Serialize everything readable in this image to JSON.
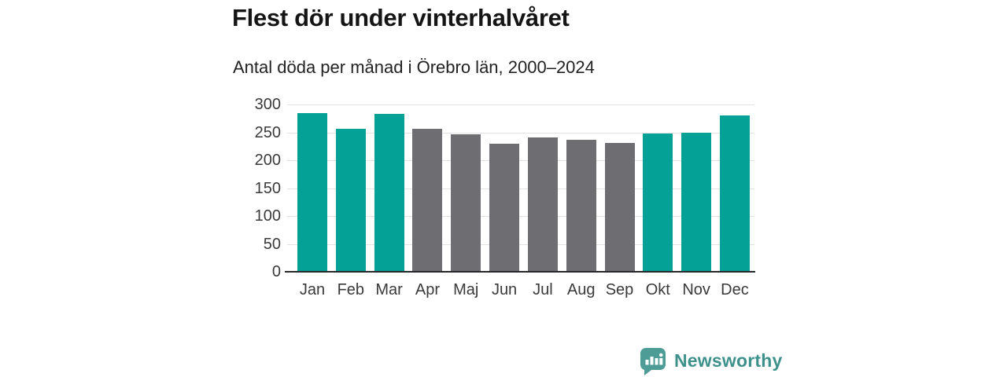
{
  "header": {
    "title": "Flest dör under vinterhalvåret",
    "subtitle": "Antal döda per månad i Örebro län, 2000–2024"
  },
  "chart_data": {
    "type": "bar",
    "categories": [
      "Jan",
      "Feb",
      "Mar",
      "Apr",
      "Maj",
      "Jun",
      "Jul",
      "Aug",
      "Sep",
      "Okt",
      "Nov",
      "Dec"
    ],
    "values": [
      284,
      256,
      283,
      256,
      247,
      229,
      241,
      237,
      231,
      248,
      249,
      280
    ],
    "bar_colors": [
      "winter",
      "winter",
      "winter",
      "summer",
      "summer",
      "summer",
      "summer",
      "summer",
      "summer",
      "winter",
      "winter",
      "winter"
    ],
    "palette": {
      "winter": "#04a296",
      "summer": "#6e6d71"
    },
    "title": "Flest dör under vinterhalvåret",
    "subtitle": "Antal döda per månad i Örebro län, 2000–2024",
    "xlabel": "",
    "ylabel": "",
    "ylim": [
      0,
      300
    ],
    "yticks": [
      0,
      50,
      100,
      150,
      200,
      250,
      300
    ],
    "grid": true,
    "legend": false
  },
  "branding": {
    "logo_text": "Newsworthy",
    "logo_icon": "bar-chart-speech-bubble-icon",
    "logo_color": "#3e918b",
    "logo_bubble_color": "#4d9c96"
  }
}
